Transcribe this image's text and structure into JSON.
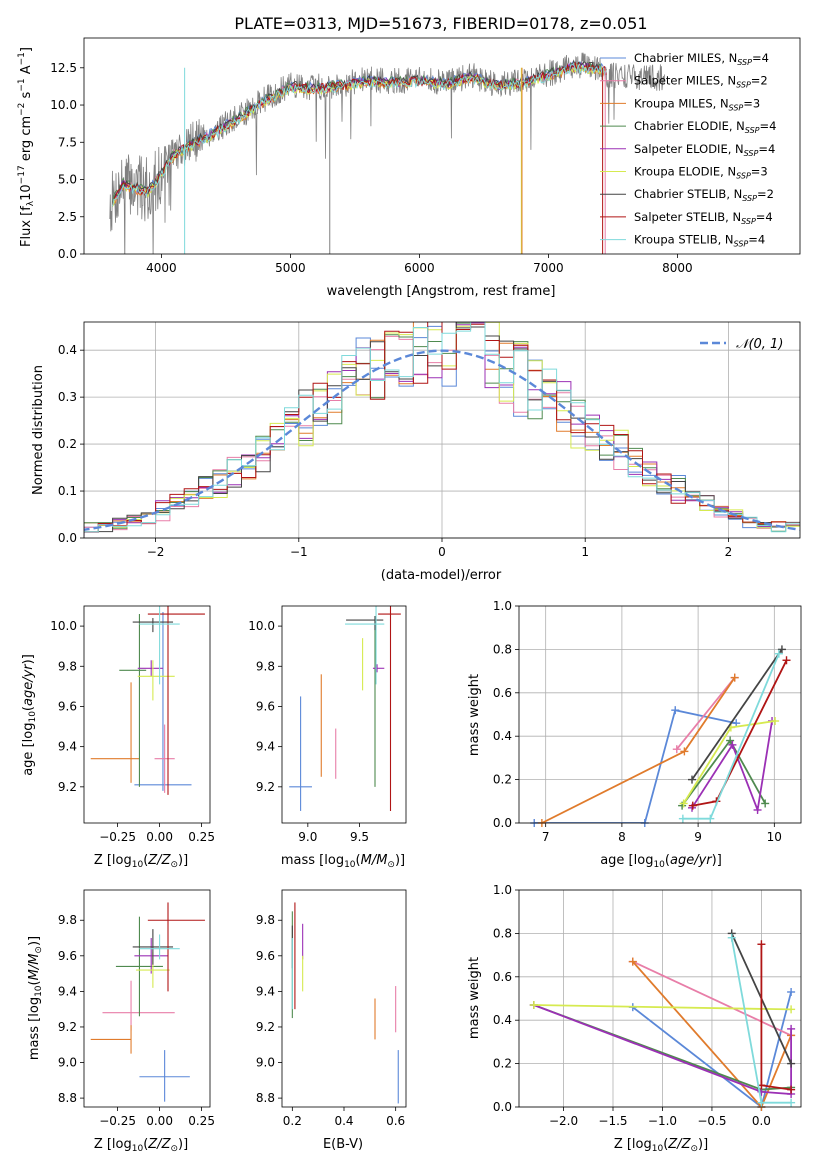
{
  "title": "PLATE=0313, MJD=51673, FIBERID=0178, z=0.051",
  "series": [
    {
      "name": "Chabrier MILES",
      "nssp": "4",
      "color": "#5b88d8"
    },
    {
      "name": "Salpeter MILES",
      "nssp": "2",
      "color": "#e87ea8"
    },
    {
      "name": "Kroupa MILES",
      "nssp": "3",
      "color": "#e07b2c"
    },
    {
      "name": "Chabrier ELODIE",
      "nssp": "4",
      "color": "#4f8a4f"
    },
    {
      "name": "Salpeter ELODIE",
      "nssp": "4",
      "color": "#9b30b5"
    },
    {
      "name": "Kroupa ELODIE",
      "nssp": "3",
      "color": "#d6ea50"
    },
    {
      "name": "Chabrier STELIB",
      "nssp": "2",
      "color": "#444444"
    },
    {
      "name": "Salpeter STELIB",
      "nssp": "4",
      "color": "#b01515"
    },
    {
      "name": "Kroupa STELIB",
      "nssp": "4",
      "color": "#7fdadb"
    }
  ],
  "chart_data": [
    {
      "id": "spectrum",
      "type": "line",
      "xlabel": "wavelength [Angstrom, rest frame]",
      "ylabel": "Flux [fλ10⁻¹⁷ erg cm⁻² s⁻¹ A⁻¹]",
      "xlim": [
        3400,
        8950
      ],
      "ylim": [
        0,
        14.5
      ],
      "xticks": [
        4000,
        5000,
        6000,
        7000,
        8000
      ],
      "yticks": [
        0.0,
        2.5,
        5.0,
        7.5,
        10.0,
        12.5
      ],
      "grid": false,
      "legend": "top-right",
      "observed_color": "#808080",
      "model_envelope": {
        "x": [
          3620,
          3700,
          3800,
          3900,
          4000,
          4100,
          4200,
          4400,
          4600,
          4800,
          5000,
          5200,
          5400,
          5600,
          5800,
          6000,
          6200,
          6400,
          6600,
          6800,
          7000,
          7200,
          7400,
          7450
        ],
        "y": [
          3.5,
          4.8,
          4.5,
          4.3,
          5.5,
          6.8,
          7.3,
          8.2,
          9.2,
          10.4,
          11.3,
          11.2,
          11.4,
          11.7,
          11.6,
          11.7,
          11.5,
          12.0,
          11.4,
          11.6,
          12.1,
          12.7,
          12.5,
          12.4
        ]
      },
      "observed_range": [
        3600,
        7900
      ]
    },
    {
      "id": "residuals",
      "type": "step",
      "xlabel": "(data-model)/error",
      "ylabel": "Normed distribution",
      "xlim": [
        -2.5,
        2.5
      ],
      "ylim": [
        0,
        0.46
      ],
      "xticks": [
        -2,
        -1,
        0,
        1,
        2
      ],
      "yticks": [
        0.0,
        0.1,
        0.2,
        0.3,
        0.4
      ],
      "grid": true,
      "legend": "top-right",
      "reference": {
        "name": "𝒩(0, 1)",
        "color": "#5b88d8"
      }
    },
    {
      "id": "age-vs-z",
      "type": "errorbar",
      "xlabel": "Z [log₁₀(Z/Z⊙)]",
      "ylabel": "age  [log₁₀(age/yr)]",
      "xlim": [
        -0.45,
        0.3
      ],
      "ylim": [
        9.02,
        10.1
      ],
      "xticks": [
        -0.25,
        0.0,
        0.25
      ],
      "xtick_labels": [
        "−0.25",
        "0.00",
        "0.25"
      ],
      "yticks": [
        9.2,
        9.4,
        9.6,
        9.8,
        10.0
      ],
      "grid": false,
      "points": [
        {
          "s": 0,
          "x": 0.02,
          "y": 9.21,
          "xerr": [
            0.17,
            0.17
          ],
          "yerr": [
            0.03,
            0.86
          ]
        },
        {
          "s": 1,
          "x": 0.03,
          "y": 9.34,
          "xerr": [
            0.06,
            0.06
          ],
          "yerr": [
            0.17,
            0.17
          ]
        },
        {
          "s": 2,
          "x": -0.17,
          "y": 9.34,
          "xerr": [
            0.24,
            0.05
          ],
          "yerr": [
            0.12,
            0.38
          ]
        },
        {
          "s": 3,
          "x": -0.12,
          "y": 9.78,
          "xerr": [
            0.12,
            0.04
          ],
          "yerr": [
            0.58,
            0.28
          ]
        },
        {
          "s": 4,
          "x": -0.05,
          "y": 9.79,
          "xerr": [
            0.08,
            0.07
          ],
          "yerr": [
            0.04,
            0.04
          ]
        },
        {
          "s": 5,
          "x": -0.04,
          "y": 9.75,
          "xerr": [
            0.09,
            0.13
          ],
          "yerr": [
            0.12,
            0.08
          ]
        },
        {
          "s": 6,
          "x": -0.04,
          "y": 10.02,
          "xerr": [
            0.12,
            0.12
          ],
          "yerr": [
            0.05,
            0.02
          ]
        },
        {
          "s": 7,
          "x": 0.05,
          "y": 10.06,
          "xerr": [
            0.12,
            0.22
          ],
          "yerr": [
            0.9,
            0.04
          ]
        },
        {
          "s": 8,
          "x": 0.0,
          "y": 10.01,
          "xerr": [
            0.12,
            0.12
          ],
          "yerr": [
            0.3,
            0.09
          ]
        }
      ]
    },
    {
      "id": "age-vs-mass",
      "type": "errorbar",
      "xlabel": "mass [log₁₀(M/M⊙)]",
      "ylabel": "",
      "xlim": [
        8.75,
        9.95
      ],
      "ylim": [
        9.02,
        10.1
      ],
      "xticks": [
        9.0,
        9.5
      ],
      "xtick_labels": [
        "9.0",
        "9.5"
      ],
      "yticks": [
        9.2,
        9.4,
        9.6,
        9.8,
        10.0
      ],
      "grid": false,
      "points": [
        {
          "s": 0,
          "x": 8.93,
          "y": 9.2,
          "xerr": [
            0.11,
            0.11
          ],
          "yerr": [
            0.12,
            0.45
          ]
        },
        {
          "s": 1,
          "x": 9.27,
          "y": 9.34,
          "xerr": [
            0.0,
            0.0
          ],
          "yerr": [
            0.1,
            0.15
          ]
        },
        {
          "s": 2,
          "x": 9.13,
          "y": 9.34,
          "xerr": [
            0.0,
            0.0
          ],
          "yerr": [
            0.09,
            0.42
          ]
        },
        {
          "s": 3,
          "x": 9.65,
          "y": 9.75,
          "xerr": [
            0.0,
            0.0
          ],
          "yerr": [
            0.55,
            0.3
          ]
        },
        {
          "s": 4,
          "x": 9.67,
          "y": 9.79,
          "xerr": [
            0.04,
            0.07
          ],
          "yerr": [
            0.02,
            0.02
          ]
        },
        {
          "s": 5,
          "x": 9.53,
          "y": 9.75,
          "xerr": [
            0.0,
            0.0
          ],
          "yerr": [
            0.07,
            0.19
          ]
        },
        {
          "s": 6,
          "x": 9.65,
          "y": 10.03,
          "xerr": [
            0.28,
            0.08
          ],
          "yerr": [
            0.05,
            0.02
          ]
        },
        {
          "s": 7,
          "x": 9.8,
          "y": 10.06,
          "xerr": [
            0.12,
            0.1
          ],
          "yerr": [
            0.98,
            0.04
          ]
        },
        {
          "s": 8,
          "x": 9.66,
          "y": 10.01,
          "xerr": [
            0.3,
            0.08
          ],
          "yerr": [
            0.3,
            0.09
          ]
        }
      ]
    },
    {
      "id": "weight-vs-age",
      "type": "line",
      "xlabel": "age  [log₁₀(age/yr)]",
      "ylabel": "mass weight",
      "xlim": [
        6.65,
        10.35
      ],
      "ylim": [
        0,
        1
      ],
      "xticks": [
        7,
        8,
        9,
        10
      ],
      "yticks": [
        0.0,
        0.2,
        0.4,
        0.6,
        0.8,
        1.0
      ],
      "grid": true,
      "lines": [
        {
          "s": 0,
          "x": [
            6.85,
            8.3,
            8.7,
            9.5
          ],
          "y": [
            0.0,
            0.0,
            0.52,
            0.46
          ]
        },
        {
          "s": 1,
          "x": [
            8.72,
            9.48
          ],
          "y": [
            0.34,
            0.67
          ]
        },
        {
          "s": 2,
          "x": [
            6.95,
            8.82,
            9.48
          ],
          "y": [
            0.0,
            0.33,
            0.67
          ]
        },
        {
          "s": 3,
          "x": [
            8.79,
            9.42,
            9.88
          ],
          "y": [
            0.08,
            0.38,
            0.09
          ]
        },
        {
          "s": 4,
          "x": [
            8.92,
            9.45,
            9.78,
            9.97
          ],
          "y": [
            0.07,
            0.36,
            0.06,
            0.47
          ]
        },
        {
          "s": 5,
          "x": [
            8.81,
            9.43,
            10.01
          ],
          "y": [
            0.09,
            0.44,
            0.47
          ]
        },
        {
          "s": 6,
          "x": [
            8.92,
            10.1
          ],
          "y": [
            0.2,
            0.8
          ]
        },
        {
          "s": 7,
          "x": [
            8.93,
            9.24,
            10.16
          ],
          "y": [
            0.08,
            0.1,
            0.75
          ]
        },
        {
          "s": 8,
          "x": [
            8.8,
            9.16,
            10.06
          ],
          "y": [
            0.02,
            0.02,
            0.78
          ]
        }
      ]
    },
    {
      "id": "mass-vs-z",
      "type": "errorbar",
      "xlabel": "Z [log₁₀(Z/Z⊙)]",
      "ylabel": "mass [log₁₀(M/M⊙)]",
      "xlim": [
        -0.45,
        0.3
      ],
      "ylim": [
        8.75,
        9.97
      ],
      "xticks": [
        -0.25,
        0.0,
        0.25
      ],
      "xtick_labels": [
        "−0.25",
        "0.00",
        "0.25"
      ],
      "yticks": [
        8.8,
        9.0,
        9.2,
        9.4,
        9.6,
        9.8
      ],
      "grid": false,
      "points": [
        {
          "s": 0,
          "x": 0.03,
          "y": 8.92,
          "xerr": [
            0.15,
            0.15
          ],
          "yerr": [
            0.14,
            0.15
          ]
        },
        {
          "s": 1,
          "x": -0.17,
          "y": 9.28,
          "xerr": [
            0.17,
            0.26
          ],
          "yerr": [
            0.1,
            0.18
          ]
        },
        {
          "s": 2,
          "x": -0.17,
          "y": 9.13,
          "xerr": [
            0.24,
            0.0
          ],
          "yerr": [
            0.08,
            0.08
          ]
        },
        {
          "s": 3,
          "x": -0.12,
          "y": 9.54,
          "xerr": [
            0.14,
            0.14
          ],
          "yerr": [
            0.28,
            0.28
          ]
        },
        {
          "s": 4,
          "x": -0.05,
          "y": 9.6,
          "xerr": [
            0.1,
            0.1
          ],
          "yerr": [
            0.1,
            0.1
          ]
        },
        {
          "s": 5,
          "x": -0.04,
          "y": 9.52,
          "xerr": [
            0.1,
            0.1
          ],
          "yerr": [
            0.1,
            0.1
          ]
        },
        {
          "s": 6,
          "x": -0.04,
          "y": 9.65,
          "xerr": [
            0.12,
            0.12
          ],
          "yerr": [
            0.1,
            0.1
          ]
        },
        {
          "s": 7,
          "x": 0.05,
          "y": 9.8,
          "xerr": [
            0.12,
            0.22
          ],
          "yerr": [
            0.4,
            0.1
          ]
        },
        {
          "s": 8,
          "x": 0.0,
          "y": 9.64,
          "xerr": [
            0.12,
            0.12
          ],
          "yerr": [
            0.06,
            0.08
          ]
        }
      ]
    },
    {
      "id": "mass-vs-ebv",
      "type": "errorbar",
      "xlabel": "E(B-V)",
      "ylabel": "",
      "xlim": [
        0.16,
        0.64
      ],
      "ylim": [
        8.75,
        9.97
      ],
      "xticks": [
        0.2,
        0.4,
        0.6
      ],
      "xtick_labels": [
        "0.2",
        "0.4",
        "0.6"
      ],
      "yticks": [
        8.8,
        9.0,
        9.2,
        9.4,
        9.6,
        9.8
      ],
      "grid": false,
      "points": [
        {
          "s": 0,
          "x": 0.61,
          "y": 8.92,
          "xerr": [
            0.0,
            0.0
          ],
          "yerr": [
            0.15,
            0.15
          ]
        },
        {
          "s": 1,
          "x": 0.6,
          "y": 9.29,
          "xerr": [
            0.0,
            0.0
          ],
          "yerr": [
            0.12,
            0.14
          ]
        },
        {
          "s": 2,
          "x": 0.52,
          "y": 9.25,
          "xerr": [
            0.0,
            0.0
          ],
          "yerr": [
            0.12,
            0.11
          ]
        },
        {
          "s": 3,
          "x": 0.2,
          "y": 9.55,
          "xerr": [
            0.0,
            0.0
          ],
          "yerr": [
            0.3,
            0.3
          ]
        },
        {
          "s": 4,
          "x": 0.24,
          "y": 9.68,
          "xerr": [
            0.0,
            0.0
          ],
          "yerr": [
            0.1,
            0.1
          ]
        },
        {
          "s": 5,
          "x": 0.24,
          "y": 9.5,
          "xerr": [
            0.0,
            0.0
          ],
          "yerr": [
            0.1,
            0.1
          ]
        },
        {
          "s": 6,
          "x": 0.2,
          "y": 9.65,
          "xerr": [
            0.0,
            0.0
          ],
          "yerr": [
            0.12,
            0.12
          ]
        },
        {
          "s": 7,
          "x": 0.21,
          "y": 9.6,
          "xerr": [
            0.0,
            0.0
          ],
          "yerr": [
            0.3,
            0.3
          ]
        },
        {
          "s": 8,
          "x": 0.2,
          "y": 9.5,
          "xerr": [
            0.0,
            0.0
          ],
          "yerr": [
            0.2,
            0.2
          ]
        }
      ]
    },
    {
      "id": "weight-vs-z",
      "type": "line",
      "xlabel": "Z [log₁₀(Z/Z⊙)]",
      "ylabel": "mass weight",
      "xlim": [
        -2.45,
        0.4
      ],
      "ylim": [
        0,
        1
      ],
      "xticks": [
        -2.0,
        -1.5,
        -1.0,
        -0.5,
        0.0
      ],
      "xtick_labels": [
        "−2.0",
        "−1.5",
        "−1.0",
        "−0.5",
        "0.0"
      ],
      "yticks": [
        0.0,
        0.2,
        0.4,
        0.6,
        0.8,
        1.0
      ],
      "grid": true,
      "lines": [
        {
          "s": 0,
          "x": [
            -1.3,
            0.0,
            0.3
          ],
          "y": [
            0.46,
            0.0,
            0.53
          ]
        },
        {
          "s": 1,
          "x": [
            -1.3,
            0.3
          ],
          "y": [
            0.67,
            0.33
          ]
        },
        {
          "s": 2,
          "x": [
            -1.3,
            0.0,
            0.3
          ],
          "y": [
            0.67,
            0.0,
            0.33
          ]
        },
        {
          "s": 3,
          "x": [
            -2.3,
            0.0,
            0.3
          ],
          "y": [
            0.47,
            0.08,
            0.09
          ]
        },
        {
          "s": 4,
          "x": [
            -2.3,
            0.0,
            0.3,
            0.3
          ],
          "y": [
            0.47,
            0.07,
            0.06,
            0.36
          ]
        },
        {
          "s": 5,
          "x": [
            -2.3,
            0.3
          ],
          "y": [
            0.47,
            0.45
          ]
        },
        {
          "s": 6,
          "x": [
            -0.3,
            0.3
          ],
          "y": [
            0.8,
            0.2
          ]
        },
        {
          "s": 7,
          "x": [
            0.0,
            0.0,
            0.3
          ],
          "y": [
            0.75,
            0.1,
            0.08
          ]
        },
        {
          "s": 8,
          "x": [
            -0.3,
            0.0,
            0.3
          ],
          "y": [
            0.78,
            0.02,
            0.02
          ]
        }
      ]
    }
  ]
}
